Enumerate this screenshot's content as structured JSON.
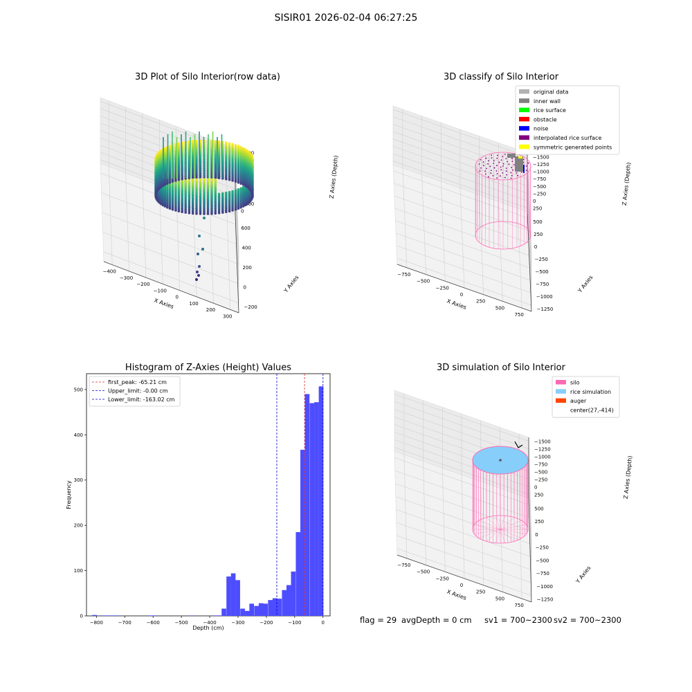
{
  "figure": {
    "suptitle": "SISIR01 2026-02-04 06:27:25",
    "footer": {
      "flag": "flag = 29",
      "avg": "avgDepth = 0 cm",
      "sv1": "sv1 = 700~2300",
      "sv2": "sv2 = 700~2300"
    }
  },
  "colors": {
    "hist_bar": "#4d4dff",
    "first_peak": "#d62728",
    "limit": "#0000cc",
    "silo": "#ff69b4",
    "rice": "#87cefa",
    "auger": "#ff4500",
    "original": "#b2b2b2",
    "inner_wall": "#808080",
    "rice_surface": "#00ff00",
    "obstacle": "#ff0000",
    "noise": "#0000ff",
    "interp": "#800080",
    "symmetric": "#ffff00"
  },
  "chart_data": [
    {
      "type": "scatter",
      "title": "3D Plot of Silo Interior(row data)",
      "xlabel": "X Axies",
      "ylabel": "Y Axies",
      "zlabel": "Z Axies (Depth)",
      "xticks": [
        "−400",
        "−300",
        "−200",
        "−100",
        "0",
        "100",
        "200",
        "300"
      ],
      "yticks": [
        "−200",
        "0",
        "200",
        "400",
        "600"
      ],
      "zticks": [
        "0",
        "−100",
        "−200",
        "−300",
        "−400",
        "−500",
        "−600",
        "−700",
        "−800"
      ],
      "colormap": "viridis"
    },
    {
      "type": "scatter",
      "title": "3D classify of Silo Interior",
      "xlabel": "X Axies",
      "ylabel": "Y Axies",
      "zlabel": "Z Axies (Depth)",
      "xticks": [
        "−750",
        "−500",
        "−250",
        "0",
        "250",
        "500",
        "750"
      ],
      "yticks": [
        "−1250",
        "−1000",
        "−750",
        "−500",
        "−250",
        "0",
        "250",
        "500"
      ],
      "zticks": [
        "250",
        "0",
        "−250",
        "−500",
        "−750",
        "−1000",
        "−1250",
        "−1500"
      ],
      "legend": [
        {
          "label": "original data",
          "color": "#b2b2b2"
        },
        {
          "label": "inner wall",
          "color": "#808080"
        },
        {
          "label": "rice surface",
          "color": "#00ff00"
        },
        {
          "label": "obstacle",
          "color": "#ff0000"
        },
        {
          "label": "noise",
          "color": "#0000ff"
        },
        {
          "label": "interpolated rice surface",
          "color": "#800080"
        },
        {
          "label": "symmetric generated points",
          "color": "#ffff00"
        }
      ],
      "legend_position": "top-right"
    },
    {
      "type": "bar",
      "title": "Histogram of Z-Axies (Height) Values",
      "xlabel": "Depth (cm)",
      "ylabel": "Frequency",
      "xlim": [
        -835,
        25
      ],
      "ylim": [
        0,
        535
      ],
      "xticks": [
        -800,
        -700,
        -600,
        -500,
        -400,
        -300,
        -200,
        -100,
        0
      ],
      "yticks": [
        0,
        100,
        200,
        300,
        400,
        500
      ],
      "bin_width": 16.3,
      "bins": [
        {
          "x": -815,
          "y": 2
        },
        {
          "x": -798,
          "y": 0
        },
        {
          "x": -782,
          "y": 1
        },
        {
          "x": -766,
          "y": 1
        },
        {
          "x": -750,
          "y": 1
        },
        {
          "x": -733,
          "y": 1
        },
        {
          "x": -717,
          "y": 0
        },
        {
          "x": -700,
          "y": 0
        },
        {
          "x": -684,
          "y": 0
        },
        {
          "x": -668,
          "y": 0
        },
        {
          "x": -652,
          "y": 0
        },
        {
          "x": -635,
          "y": 0
        },
        {
          "x": -619,
          "y": 1
        },
        {
          "x": -603,
          "y": 1
        },
        {
          "x": -586,
          "y": 0
        },
        {
          "x": -570,
          "y": 0
        },
        {
          "x": -554,
          "y": 0
        },
        {
          "x": -537,
          "y": 0
        },
        {
          "x": -521,
          "y": 0
        },
        {
          "x": -505,
          "y": 0
        },
        {
          "x": -488,
          "y": 0
        },
        {
          "x": -472,
          "y": 1
        },
        {
          "x": -456,
          "y": 0
        },
        {
          "x": -439,
          "y": 0
        },
        {
          "x": -423,
          "y": 0
        },
        {
          "x": -407,
          "y": 0
        },
        {
          "x": -390,
          "y": 1
        },
        {
          "x": -374,
          "y": 1
        },
        {
          "x": -358,
          "y": 16
        },
        {
          "x": -341,
          "y": 87
        },
        {
          "x": -325,
          "y": 94
        },
        {
          "x": -309,
          "y": 79
        },
        {
          "x": -292,
          "y": 16
        },
        {
          "x": -276,
          "y": 11
        },
        {
          "x": -260,
          "y": 27
        },
        {
          "x": -243,
          "y": 22
        },
        {
          "x": -227,
          "y": 28
        },
        {
          "x": -211,
          "y": 27
        },
        {
          "x": -194,
          "y": 35
        },
        {
          "x": -178,
          "y": 39
        },
        {
          "x": -162,
          "y": 38
        },
        {
          "x": -145,
          "y": 57
        },
        {
          "x": -129,
          "y": 68
        },
        {
          "x": -113,
          "y": 98
        },
        {
          "x": -96,
          "y": 185
        },
        {
          "x": -80,
          "y": 367
        },
        {
          "x": -64,
          "y": 490
        },
        {
          "x": -47,
          "y": 470
        },
        {
          "x": -31,
          "y": 472
        },
        {
          "x": -15,
          "y": 507
        }
      ],
      "vlines": [
        {
          "label": "first_peak: -65.21 cm",
          "x": -65.21,
          "color": "#d62728"
        },
        {
          "label": "Upper_limit: -0.00 cm",
          "x": 0,
          "color": "#0000cc"
        },
        {
          "label": "Lower_limit: -163.02 cm",
          "x": -163.02,
          "color": "#0000cc"
        }
      ],
      "legend_position": "top-left"
    },
    {
      "type": "scatter",
      "title": "3D simulation of Silo Interior",
      "xlabel": "X Axies",
      "ylabel": "Y Axies",
      "zlabel": "Z Axies (Depth)",
      "xticks": [
        "−750",
        "−500",
        "−250",
        "0",
        "250",
        "500",
        "750"
      ],
      "yticks": [
        "−1250",
        "−1000",
        "−750",
        "−500",
        "−250",
        "0",
        "250",
        "500"
      ],
      "zticks": [
        "250",
        "0",
        "−250",
        "−500",
        "−750",
        "−1000",
        "−1250",
        "−1500"
      ],
      "legend": [
        {
          "label": "silo",
          "color": "#ff69b4"
        },
        {
          "label": "rice simulation",
          "color": "#87cefa"
        },
        {
          "label": "auger",
          "color": "#ff4500"
        },
        {
          "label": "center(27,-414)",
          "color": ""
        }
      ],
      "legend_position": "top-right"
    }
  ]
}
